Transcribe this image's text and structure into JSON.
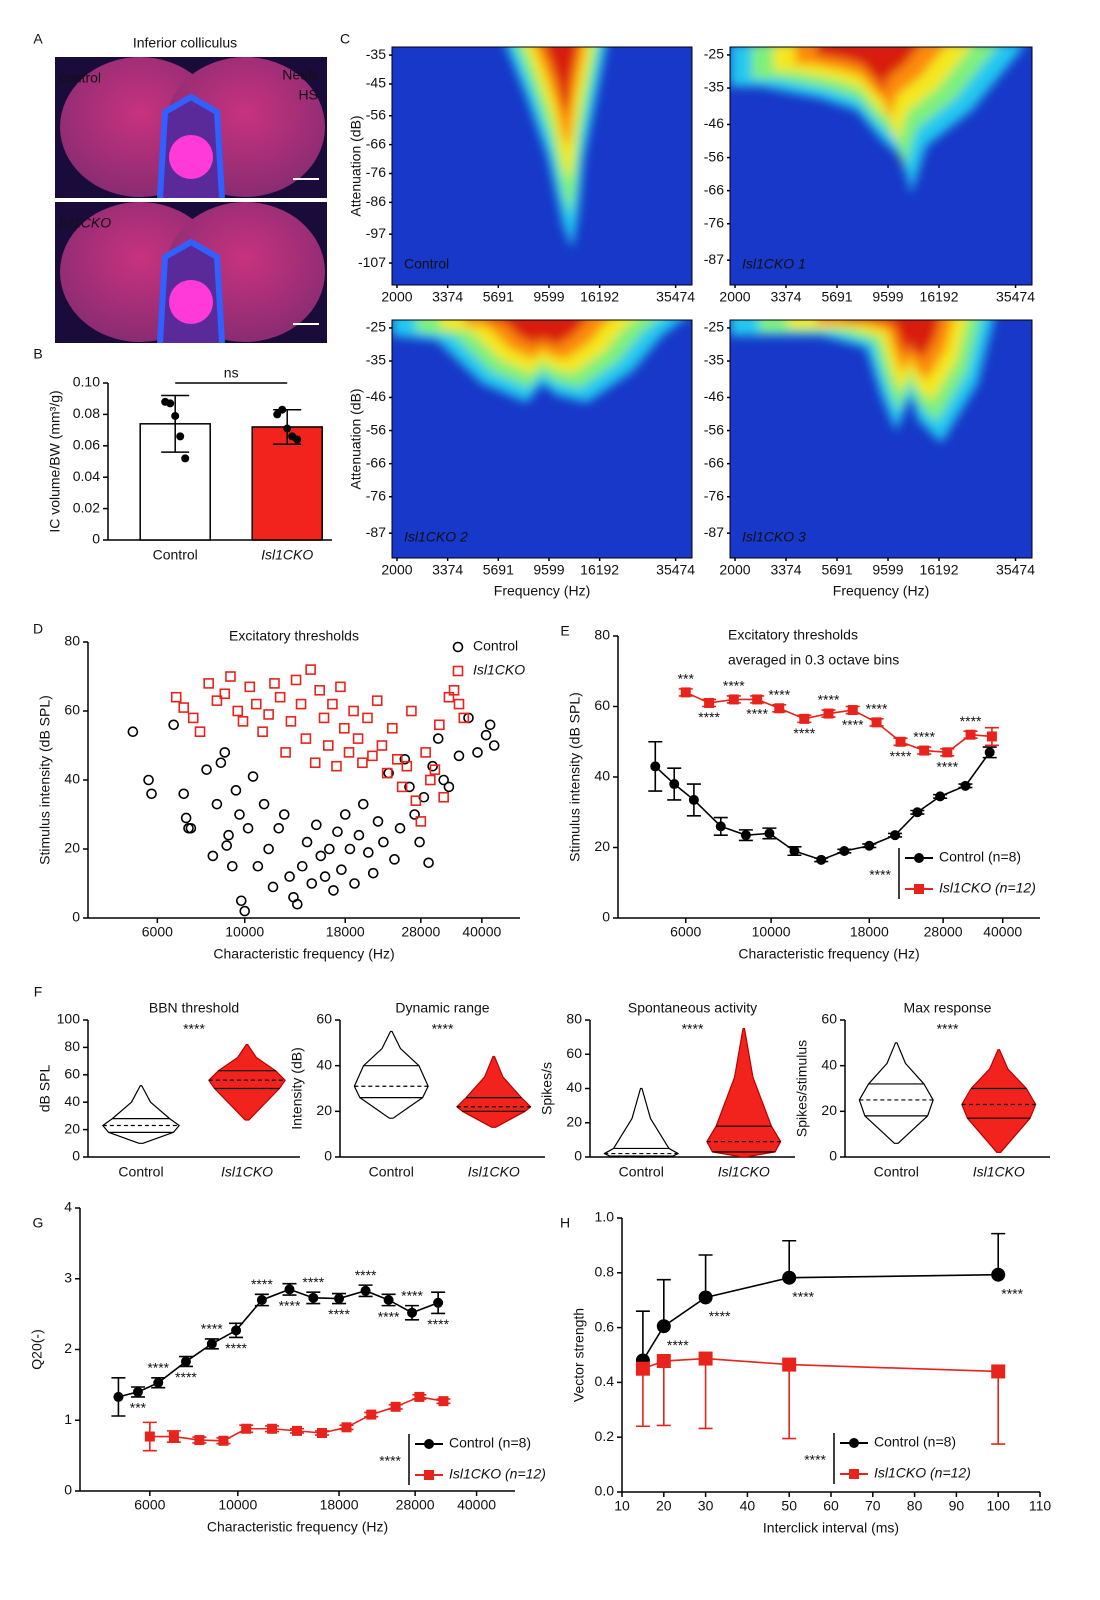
{
  "chart_data": [
    {
      "panel": "A",
      "type": "image",
      "title": "Inferior colliculus",
      "images": [
        "control",
        "Isl1CKO"
      ],
      "stains": [
        {
          "name": "NeuN",
          "color": "#ff2a2a"
        },
        {
          "name": "HS",
          "color": "#3aa6ff"
        }
      ]
    },
    {
      "panel": "B",
      "type": "bar",
      "ylabel": "IC volume/BW (mm³/g)",
      "categories": [
        "Control",
        "Isl1CKO"
      ],
      "values": [
        0.074,
        0.072
      ],
      "errors": [
        0.018,
        0.011
      ],
      "points": [
        [
          0.088,
          0.087,
          0.079,
          0.066,
          0.052
        ],
        [
          0.08,
          0.083,
          0.071,
          0.066,
          0.064
        ]
      ],
      "colors": [
        "#ffffff",
        "#f2231c"
      ],
      "ylim": [
        0,
        0.1
      ],
      "yticks": [
        0,
        0.02,
        0.04,
        0.06,
        0.08,
        {
          "value": 0.1,
          "label": "0.10"
        }
      ],
      "annotation": "ns"
    },
    {
      "panel": "C",
      "type": "heatmap",
      "xlabel": "Frequency (Hz)",
      "ylabel": "Attenuation (dB)",
      "log_x": true,
      "xlim": [
        1900,
        42000
      ],
      "xticks": [
        2000,
        3374,
        5691,
        9599,
        16192,
        35474
      ],
      "maps": [
        {
          "name": "Control",
          "ylim": [
            -114.6,
            -32.2
          ],
          "yticks": [
            -35,
            -45,
            -56,
            -66,
            -76,
            -86,
            -97,
            -107
          ]
        },
        {
          "name": "Isl1CKO 1",
          "ylim": [
            -94.5,
            -22.6
          ],
          "yticks": [
            -25,
            -35,
            -46,
            -56,
            -66,
            -76,
            -87
          ]
        },
        {
          "name": "Isl1CKO 2",
          "ylim": [
            -94.5,
            -22.6
          ],
          "yticks": [
            -25,
            -35,
            -46,
            -56,
            -66,
            -76,
            -87
          ]
        },
        {
          "name": "Isl1CKO 3",
          "ylim": [
            -94.5,
            -22.6
          ],
          "yticks": [
            -25,
            -35,
            -46,
            -56,
            -66,
            -76,
            -87
          ]
        }
      ]
    },
    {
      "panel": "D",
      "type": "scatter",
      "title": "Excitatory thresholds",
      "xlabel": "Characteristic frequency (Hz)",
      "ylabel": "Stimulus intensity (dB SPL)",
      "log_x": true,
      "xlim": [
        4000,
        50000
      ],
      "xticks": [
        6000,
        10000,
        18000,
        28000,
        40000
      ],
      "ylim": [
        0,
        80
      ],
      "yticks": [
        0,
        20,
        40,
        60,
        80
      ],
      "series": [
        {
          "name": "Control",
          "color": "#000000",
          "x": [
            5200,
            5700,
            5800,
            6600,
            7000,
            7100,
            7200,
            7300,
            8000,
            8300,
            8500,
            8700,
            8900,
            9000,
            9100,
            9300,
            9500,
            9700,
            9800,
            10000,
            10200,
            10500,
            10800,
            11200,
            11500,
            11800,
            12200,
            12600,
            13000,
            13300,
            13600,
            14000,
            14400,
            14800,
            15200,
            15600,
            16000,
            16400,
            16800,
            17200,
            17600,
            18000,
            18500,
            19000,
            19500,
            20000,
            20600,
            21200,
            21800,
            22500,
            23200,
            24000,
            24800,
            25500,
            26200,
            27000,
            27800,
            28500,
            29300,
            30000,
            31000,
            32000,
            33000,
            35000,
            37000,
            39000,
            41000,
            42000,
            43000
          ],
          "values": [
            54,
            40,
            36,
            56,
            36,
            29,
            26,
            26,
            43,
            18,
            33,
            45,
            48,
            21,
            24,
            15,
            37,
            30,
            5,
            2,
            26,
            41,
            15,
            33,
            20,
            9,
            26,
            30,
            12,
            6,
            4,
            15,
            22,
            10,
            27,
            18,
            12,
            20,
            8,
            25,
            14,
            30,
            20,
            10,
            24,
            33,
            19,
            13,
            28,
            22,
            42,
            17,
            26,
            46,
            38,
            30,
            22,
            35,
            16,
            44,
            52,
            40,
            38,
            47,
            58,
            48,
            53,
            56,
            50
          ]
        },
        {
          "name": "Isl1CKO",
          "color": "#e8231b",
          "x": [
            6700,
            7000,
            7400,
            7700,
            8100,
            8500,
            8900,
            9200,
            9600,
            9900,
            10300,
            10700,
            11100,
            11500,
            11900,
            12300,
            12700,
            13100,
            13500,
            13900,
            14300,
            14700,
            15100,
            15500,
            15900,
            16300,
            16700,
            17100,
            17500,
            17900,
            18400,
            18900,
            19400,
            19900,
            20500,
            21100,
            21700,
            22300,
            23000,
            23700,
            24400,
            25100,
            25800,
            26500,
            27200,
            28000,
            28800,
            29600,
            30400,
            31200,
            32000,
            33000,
            34000,
            35000,
            36000
          ],
          "values": [
            64,
            61,
            58,
            54,
            68,
            63,
            65,
            70,
            60,
            57,
            67,
            62,
            54,
            59,
            68,
            64,
            48,
            57,
            69,
            62,
            52,
            72,
            45,
            66,
            58,
            50,
            62,
            44,
            67,
            55,
            48,
            60,
            52,
            45,
            58,
            47,
            63,
            50,
            42,
            55,
            46,
            38,
            44,
            60,
            34,
            28,
            48,
            40,
            43,
            56,
            35,
            64,
            66,
            62,
            58
          ]
        }
      ]
    },
    {
      "panel": "E",
      "type": "line",
      "title": "Excitatory thresholds",
      "subtitle": "averaged in 0.3 octave bins",
      "xlabel": "Characteristic frequency (Hz)",
      "ylabel": "Stimulus intensity (dB SPL)",
      "log_x": true,
      "xlim": [
        4000,
        50000
      ],
      "xticks": [
        6000,
        10000,
        18000,
        28000,
        40000
      ],
      "ylim": [
        0,
        80
      ],
      "yticks": [
        0,
        20,
        40,
        60,
        80
      ],
      "legend_annotation": "****",
      "series": [
        {
          "name": "Control (n=8)",
          "color": "#000000",
          "x": [
            5000,
            5600,
            6300,
            7400,
            8600,
            9900,
            11500,
            13500,
            15500,
            18000,
            21000,
            24000,
            27500,
            32000,
            37000
          ],
          "values": [
            43,
            38,
            33.5,
            26,
            23.5,
            24,
            19,
            16.5,
            19,
            20.5,
            23.5,
            30,
            34.5,
            37.5,
            47
          ],
          "errors": [
            7,
            4.5,
            4.5,
            2.5,
            1.5,
            1.5,
            1.2,
            0.5,
            0.5,
            0.5,
            0.5,
            0.5,
            0.5,
            0.5,
            1.5
          ]
        },
        {
          "name": "Isl1CKO (n=12)",
          "color": "#e8231b",
          "x": [
            6000,
            6900,
            8000,
            9200,
            10500,
            12200,
            14100,
            16300,
            18800,
            21700,
            25000,
            28700,
            33000,
            37500
          ],
          "values": [
            64,
            61,
            62,
            62,
            59.5,
            56.5,
            58,
            59,
            55.5,
            50,
            47.5,
            47,
            52,
            51.5
          ],
          "errors": [
            1,
            1,
            1,
            1,
            1,
            1,
            1,
            1,
            1,
            1,
            1,
            1,
            1,
            2.5
          ],
          "annotations": [
            "***",
            "****",
            "****",
            "****",
            "****",
            "****",
            "****",
            "****",
            "****",
            "****",
            "****",
            "****",
            "****",
            null
          ]
        }
      ]
    },
    {
      "panel": "F",
      "type": "violin",
      "title": "BBN threshold",
      "ylabel": "dB SPL",
      "ylim": [
        0,
        100
      ],
      "yticks": [
        0,
        20,
        40,
        60,
        80,
        100
      ],
      "categories": [
        "Control",
        "Isl1CKO"
      ],
      "colors": [
        "#ffffff",
        "#f2231c"
      ],
      "min": [
        10,
        27
      ],
      "q1": [
        18,
        50
      ],
      "median": [
        23,
        56
      ],
      "q3": [
        28,
        63
      ],
      "max": [
        52,
        82
      ],
      "annotation": "****"
    },
    {
      "type": "violin",
      "title": "Dynamic range",
      "ylabel": "Intensity (dB)",
      "ylim": [
        0,
        60
      ],
      "yticks": [
        0,
        20,
        40,
        60
      ],
      "categories": [
        "Control",
        "Isl1CKO"
      ],
      "colors": [
        "#ffffff",
        "#f2231c"
      ],
      "min": [
        17,
        13
      ],
      "q1": [
        26,
        20
      ],
      "median": [
        31,
        22
      ],
      "q3": [
        40,
        26
      ],
      "max": [
        55,
        44
      ],
      "annotation": "****"
    },
    {
      "type": "violin",
      "title": "Spontaneous activity",
      "ylabel": "Spikes/s",
      "ylim": [
        0,
        80
      ],
      "yticks": [
        0,
        20,
        40,
        60,
        80
      ],
      "categories": [
        "Control",
        "Isl1CKO"
      ],
      "colors": [
        "#ffffff",
        "#f2231c"
      ],
      "min": [
        0,
        0
      ],
      "q1": [
        0.5,
        3
      ],
      "median": [
        2,
        9
      ],
      "q3": [
        5,
        18
      ],
      "max": [
        40,
        75
      ],
      "annotation": "****"
    },
    {
      "type": "violin",
      "title": "Max response",
      "ylabel": "Spikes/stimulus",
      "ylim": [
        0,
        60
      ],
      "yticks": [
        0,
        20,
        40,
        60
      ],
      "categories": [
        "Control",
        "Isl1CKO"
      ],
      "colors": [
        "#ffffff",
        "#f2231c"
      ],
      "min": [
        6,
        2
      ],
      "q1": [
        18,
        17
      ],
      "median": [
        25,
        23
      ],
      "q3": [
        32,
        30
      ],
      "max": [
        50,
        47
      ],
      "annotation": "****"
    },
    {
      "panel": "G",
      "type": "line",
      "xlabel": "Characteristic frequency (Hz)",
      "ylabel": "Q20(-)",
      "log_x": true,
      "xlim": [
        4000,
        50000
      ],
      "xticks": [
        6000,
        10000,
        18000,
        28000,
        40000
      ],
      "ylim": [
        0,
        4
      ],
      "yticks": [
        0,
        1,
        2,
        3,
        4
      ],
      "legend_annotation": "****",
      "series": [
        {
          "name": "Control (n=8)",
          "color": "#000000",
          "x": [
            5000,
            5600,
            6300,
            7400,
            8600,
            9900,
            11500,
            13500,
            15500,
            18000,
            21000,
            24000,
            27500,
            32000
          ],
          "values": [
            1.33,
            1.4,
            1.53,
            1.83,
            2.08,
            2.27,
            2.7,
            2.85,
            2.73,
            2.72,
            2.83,
            2.7,
            2.52,
            2.66
          ],
          "errors": [
            0.27,
            0.07,
            0.07,
            0.07,
            0.07,
            0.1,
            0.08,
            0.08,
            0.08,
            0.07,
            0.08,
            0.08,
            0.1,
            0.15
          ],
          "annotations": [
            null,
            "***",
            "****",
            "****",
            "****",
            "****",
            "****",
            "****",
            "****",
            "****",
            "****",
            "****",
            "****",
            "****"
          ]
        },
        {
          "name": "Isl1CKO (n=12)",
          "color": "#e8231b",
          "x": [
            6000,
            6900,
            8000,
            9200,
            10500,
            12200,
            14100,
            16300,
            18800,
            21700,
            25000,
            28700,
            33000
          ],
          "values": [
            0.77,
            0.77,
            0.72,
            0.71,
            0.88,
            0.88,
            0.85,
            0.82,
            0.9,
            1.08,
            1.19,
            1.33,
            1.27
          ],
          "errors": [
            0.2,
            0.08,
            0.04,
            0.04,
            0.05,
            0.04,
            0.03,
            0.03,
            0.03,
            0.03,
            0.03,
            0.03,
            0.03
          ]
        }
      ]
    },
    {
      "panel": "H",
      "type": "line",
      "xlabel": "Interclick interval (ms)",
      "ylabel": "Vector strength",
      "xlim": [
        10,
        110
      ],
      "xticks": [
        10,
        20,
        30,
        40,
        50,
        60,
        70,
        80,
        90,
        100,
        110
      ],
      "ylim": [
        0,
        1
      ],
      "yticks": [
        {
          "value": 0,
          "label": "0.0"
        },
        0.2,
        0.4,
        0.6,
        0.8,
        {
          "value": 1,
          "label": "1.0"
        }
      ],
      "legend_annotation": "****",
      "series": [
        {
          "name": "Control (n=8)",
          "color": "#000000",
          "error_direction": "up",
          "x": [
            15,
            20,
            30,
            50,
            100
          ],
          "values": [
            0.48,
            0.605,
            0.71,
            0.782,
            0.793
          ],
          "errors": [
            0.18,
            0.17,
            0.155,
            0.135,
            0.15
          ],
          "annotations": [
            null,
            "****",
            "****",
            "****",
            "****"
          ]
        },
        {
          "name": "Isl1CKO (n=12)",
          "color": "#e8231b",
          "error_direction": "down",
          "x": [
            15,
            20,
            30,
            50,
            100
          ],
          "values": [
            0.45,
            0.478,
            0.487,
            0.465,
            0.44
          ],
          "errors": [
            0.21,
            0.235,
            0.255,
            0.27,
            0.265
          ]
        }
      ]
    }
  ]
}
